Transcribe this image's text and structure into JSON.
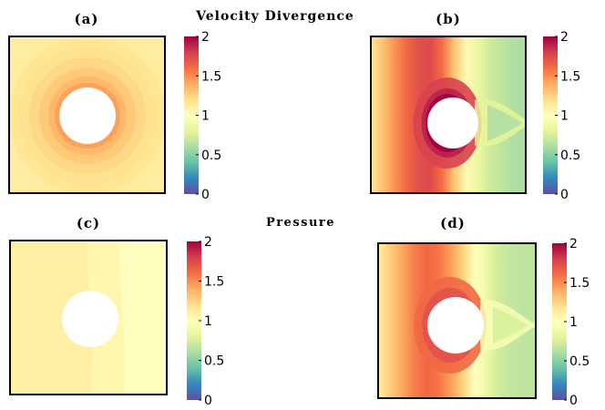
{
  "figure": {
    "title_top": "Velocity Divergence",
    "title_bottom": "Pressure"
  },
  "chart_data": [
    {
      "type": "heatmap",
      "label": "(a)",
      "group": "Velocity Divergence",
      "field": "uniform_rings",
      "field_value_range": [
        0.9,
        1.45
      ],
      "colorbar": {
        "min": 0,
        "max": 2,
        "ticks": [
          "0",
          "0.5",
          "1",
          "1.5",
          "2"
        ]
      }
    },
    {
      "type": "heatmap",
      "label": "(b)",
      "group": "Velocity Divergence",
      "field": "gradient_wake",
      "field_value_range": [
        0.45,
        2.0
      ],
      "colorbar": {
        "min": 0,
        "max": 2,
        "ticks": [
          "0",
          "0.5",
          "1",
          "1.5",
          "2"
        ]
      }
    },
    {
      "type": "heatmap",
      "label": "(c)",
      "group": "Pressure",
      "field": "near_uniform",
      "field_value_range": [
        0.95,
        1.1
      ],
      "colorbar": {
        "min": 0,
        "max": 2,
        "ticks": [
          "0",
          "0.5",
          "1",
          "1.5",
          "2"
        ]
      }
    },
    {
      "type": "heatmap",
      "label": "(d)",
      "group": "Pressure",
      "field": "gradient_wake_soft",
      "field_value_range": [
        0.55,
        1.75
      ],
      "colorbar": {
        "min": 0,
        "max": 2,
        "ticks": [
          "0",
          "0.5",
          "1",
          "1.5",
          "2"
        ]
      }
    }
  ]
}
